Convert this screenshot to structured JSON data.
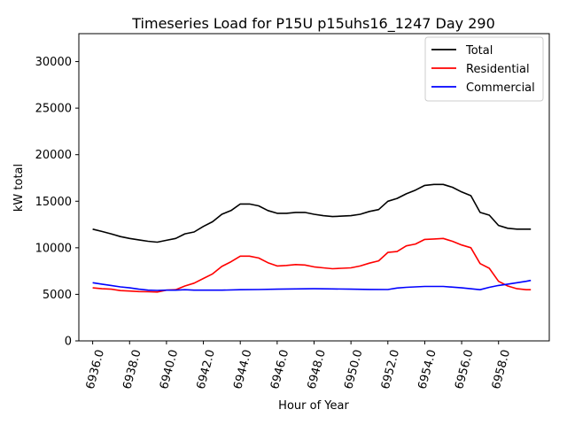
{
  "chart_data": {
    "type": "line",
    "title": "Timeseries Load for P15U p15uhs16_1247  Day 290",
    "xlabel": "Hour of Year",
    "ylabel": "kW total",
    "xlim": [
      6935.25,
      6960.75
    ],
    "ylim": [
      0,
      33000
    ],
    "xticks": [
      6936,
      6938,
      6940,
      6942,
      6944,
      6946,
      6948,
      6950,
      6952,
      6954,
      6956,
      6958
    ],
    "xtick_labels": [
      "6936.0",
      "6938.0",
      "6940.0",
      "6942.0",
      "6944.0",
      "6946.0",
      "6948.0",
      "6950.0",
      "6952.0",
      "6954.0",
      "6956.0",
      "6958.0"
    ],
    "yticks": [
      0,
      5000,
      10000,
      15000,
      20000,
      25000,
      30000
    ],
    "ytick_labels": [
      "0",
      "5000",
      "10000",
      "15000",
      "20000",
      "25000",
      "30000"
    ],
    "legend_position": "top-right",
    "series": [
      {
        "name": "Total",
        "color": "#000000",
        "points": [
          [
            6936.0,
            12000
          ],
          [
            6936.5,
            11750
          ],
          [
            6937.0,
            11500
          ],
          [
            6937.5,
            11200
          ],
          [
            6938.0,
            11000
          ],
          [
            6938.5,
            10850
          ],
          [
            6939.0,
            10700
          ],
          [
            6939.5,
            10600
          ],
          [
            6940.0,
            10800
          ],
          [
            6940.5,
            11000
          ],
          [
            6941.0,
            11500
          ],
          [
            6941.5,
            11700
          ],
          [
            6942.0,
            12300
          ],
          [
            6942.5,
            12800
          ],
          [
            6943.0,
            13600
          ],
          [
            6943.5,
            14000
          ],
          [
            6944.0,
            14700
          ],
          [
            6944.5,
            14700
          ],
          [
            6945.0,
            14500
          ],
          [
            6945.5,
            14000
          ],
          [
            6946.0,
            13700
          ],
          [
            6946.5,
            13700
          ],
          [
            6947.0,
            13800
          ],
          [
            6947.5,
            13800
          ],
          [
            6948.0,
            13600
          ],
          [
            6948.5,
            13450
          ],
          [
            6949.0,
            13350
          ],
          [
            6949.5,
            13400
          ],
          [
            6950.0,
            13450
          ],
          [
            6950.5,
            13600
          ],
          [
            6951.0,
            13900
          ],
          [
            6951.5,
            14100
          ],
          [
            6952.0,
            15000
          ],
          [
            6952.5,
            15300
          ],
          [
            6953.0,
            15800
          ],
          [
            6953.5,
            16200
          ],
          [
            6954.0,
            16700
          ],
          [
            6954.5,
            16800
          ],
          [
            6955.0,
            16800
          ],
          [
            6955.5,
            16500
          ],
          [
            6956.0,
            16000
          ],
          [
            6956.5,
            15600
          ],
          [
            6957.0,
            13800
          ],
          [
            6957.5,
            13500
          ],
          [
            6958.0,
            12400
          ],
          [
            6958.5,
            12100
          ],
          [
            6959.0,
            12000
          ],
          [
            6959.5,
            12000
          ],
          [
            6959.75,
            12000
          ]
        ]
      },
      {
        "name": "Residential",
        "color": "#ff0000",
        "points": [
          [
            6936.0,
            5700
          ],
          [
            6936.5,
            5600
          ],
          [
            6937.0,
            5550
          ],
          [
            6937.5,
            5400
          ],
          [
            6938.0,
            5350
          ],
          [
            6938.5,
            5300
          ],
          [
            6939.0,
            5280
          ],
          [
            6939.5,
            5250
          ],
          [
            6940.0,
            5450
          ],
          [
            6940.5,
            5500
          ],
          [
            6941.0,
            5900
          ],
          [
            6941.5,
            6200
          ],
          [
            6942.0,
            6700
          ],
          [
            6942.5,
            7200
          ],
          [
            6943.0,
            8000
          ],
          [
            6943.5,
            8500
          ],
          [
            6944.0,
            9100
          ],
          [
            6944.5,
            9100
          ],
          [
            6945.0,
            8900
          ],
          [
            6945.5,
            8400
          ],
          [
            6946.0,
            8050
          ],
          [
            6946.5,
            8100
          ],
          [
            6947.0,
            8200
          ],
          [
            6947.5,
            8150
          ],
          [
            6948.0,
            7950
          ],
          [
            6948.5,
            7850
          ],
          [
            6949.0,
            7750
          ],
          [
            6949.5,
            7800
          ],
          [
            6950.0,
            7850
          ],
          [
            6950.5,
            8050
          ],
          [
            6951.0,
            8350
          ],
          [
            6951.5,
            8600
          ],
          [
            6952.0,
            9500
          ],
          [
            6952.5,
            9600
          ],
          [
            6953.0,
            10200
          ],
          [
            6953.5,
            10400
          ],
          [
            6954.0,
            10900
          ],
          [
            6954.5,
            10950
          ],
          [
            6955.0,
            11000
          ],
          [
            6955.5,
            10700
          ],
          [
            6956.0,
            10300
          ],
          [
            6956.5,
            10000
          ],
          [
            6957.0,
            8300
          ],
          [
            6957.5,
            7800
          ],
          [
            6958.0,
            6400
          ],
          [
            6958.5,
            5900
          ],
          [
            6959.0,
            5600
          ],
          [
            6959.5,
            5500
          ],
          [
            6959.75,
            5500
          ]
        ]
      },
      {
        "name": "Commercial",
        "color": "#0000ff",
        "points": [
          [
            6936.0,
            6250
          ],
          [
            6936.5,
            6100
          ],
          [
            6937.0,
            5950
          ],
          [
            6937.5,
            5800
          ],
          [
            6938.0,
            5700
          ],
          [
            6938.5,
            5550
          ],
          [
            6939.0,
            5450
          ],
          [
            6939.5,
            5420
          ],
          [
            6940.0,
            5450
          ],
          [
            6940.5,
            5450
          ],
          [
            6941.0,
            5500
          ],
          [
            6941.5,
            5450
          ],
          [
            6942.0,
            5450
          ],
          [
            6943.0,
            5450
          ],
          [
            6944.0,
            5500
          ],
          [
            6945.0,
            5520
          ],
          [
            6946.0,
            5550
          ],
          [
            6947.0,
            5580
          ],
          [
            6948.0,
            5600
          ],
          [
            6949.0,
            5580
          ],
          [
            6950.0,
            5550
          ],
          [
            6951.0,
            5530
          ],
          [
            6952.0,
            5520
          ],
          [
            6952.5,
            5680
          ],
          [
            6953.0,
            5750
          ],
          [
            6954.0,
            5850
          ],
          [
            6955.0,
            5850
          ],
          [
            6956.0,
            5700
          ],
          [
            6957.0,
            5500
          ],
          [
            6957.5,
            5750
          ],
          [
            6958.0,
            5950
          ],
          [
            6958.5,
            6100
          ],
          [
            6959.0,
            6250
          ],
          [
            6959.5,
            6400
          ],
          [
            6959.75,
            6500
          ]
        ]
      }
    ]
  }
}
